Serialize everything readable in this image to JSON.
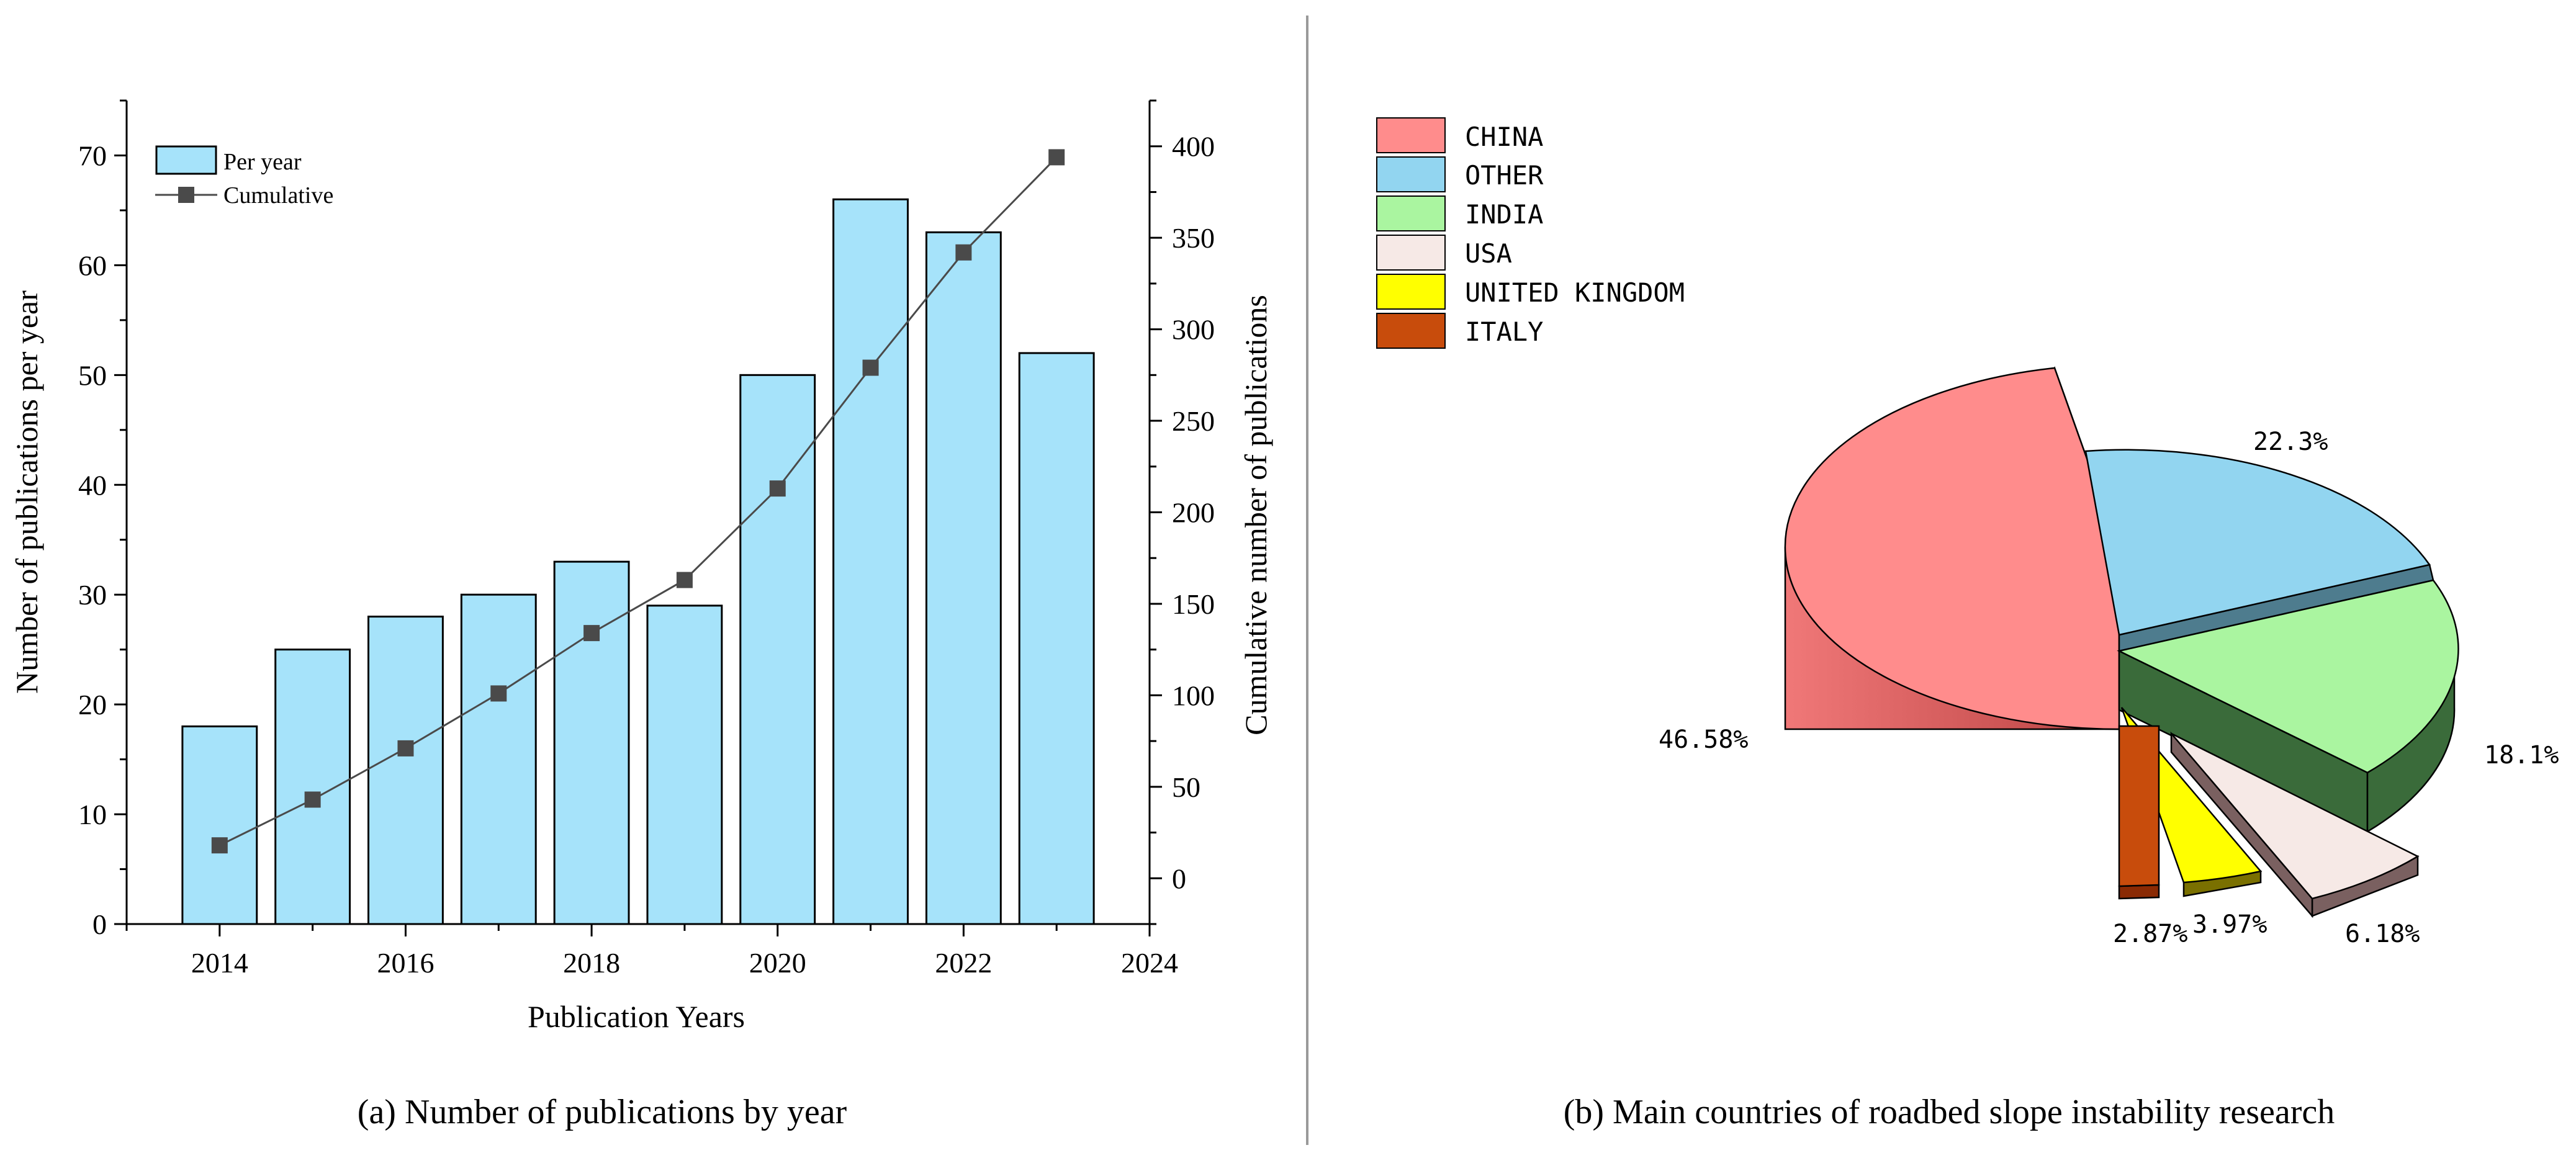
{
  "chart_data": [
    {
      "type": "bar+line",
      "caption": "(a) Number of publications by year",
      "xlabel": "Publication Years",
      "ylabel": "Number of publications per year",
      "y2label": "Cumulative number of publications",
      "xlim": [
        2013,
        2024
      ],
      "ylim": [
        0,
        75
      ],
      "y2lim": [
        -25,
        425
      ],
      "xticks": [
        "2014",
        "2016",
        "2018",
        "2020",
        "2022",
        "2024"
      ],
      "yticks": [
        "0",
        "10",
        "20",
        "30",
        "40",
        "50",
        "60",
        "70"
      ],
      "y2ticks": [
        "0",
        "50",
        "100",
        "150",
        "200",
        "250",
        "300",
        "350",
        "400"
      ],
      "years": [
        2014,
        2015,
        2016,
        2017,
        2018,
        2019,
        2020,
        2021,
        2022,
        2023
      ],
      "series": [
        {
          "name": "Per year",
          "kind": "bar",
          "color": "#A6E3FA",
          "values": [
            18,
            25,
            28,
            30,
            33,
            29,
            50,
            66,
            63,
            52
          ]
        },
        {
          "name": "Cumulative",
          "kind": "line",
          "color": "#4a4a4a",
          "values": [
            18,
            43,
            71,
            101,
            134,
            163,
            213,
            279,
            342,
            394
          ]
        }
      ],
      "legend": [
        "Per year",
        "Cumulative"
      ]
    },
    {
      "type": "pie",
      "caption": "(b) Main countries of roadbed slope instability research",
      "slices": [
        {
          "label": "CHINA",
          "value": 46.58,
          "text": "46.58%",
          "color": "#FF8C8C"
        },
        {
          "label": "OTHER",
          "value": 22.3,
          "text": "22.3%",
          "color": "#92D5F0"
        },
        {
          "label": "INDIA",
          "value": 18.1,
          "text": "18.1%",
          "color": "#AAF5A0"
        },
        {
          "label": "USA",
          "value": 6.18,
          "text": "6.18%",
          "color": "#F6E9E6"
        },
        {
          "label": "UNITED KINGDOM",
          "value": 3.97,
          "text": "3.97%",
          "color": "#FFFF00"
        },
        {
          "label": "ITALY",
          "value": 2.87,
          "text": "2.87%",
          "color": "#C84C0C"
        }
      ]
    }
  ]
}
